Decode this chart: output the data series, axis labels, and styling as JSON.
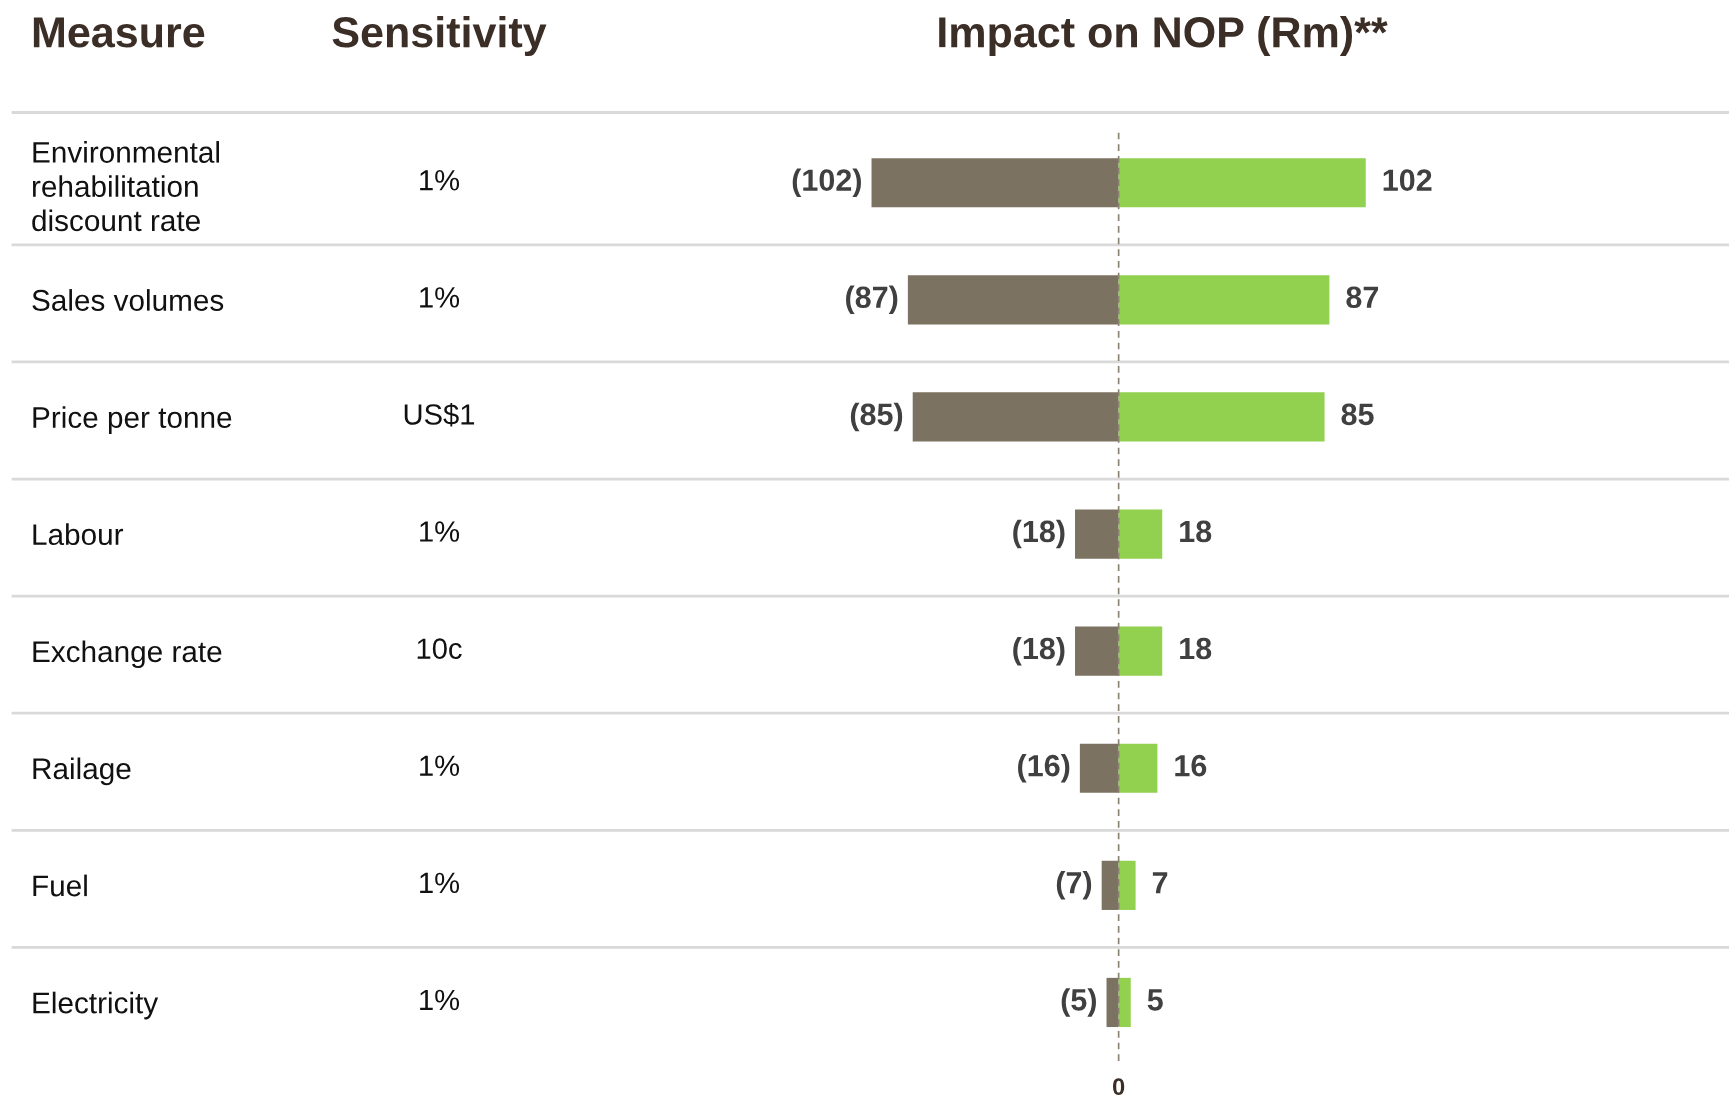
{
  "chart_data": {
    "type": "bar",
    "orientation": "horizontal",
    "stacked": true,
    "title": "Impact on NOP (Rm)**",
    "ylabel": "Measure",
    "y2label": "Sensitivity",
    "categories": [
      "Environmental\nrehabilitation\ndiscount rate",
      "Sales volumes",
      "Price per tonne",
      "Labour",
      "Exchange rate",
      "Railage",
      "Fuel",
      "Electricity"
    ],
    "y2_categories": [
      "1%",
      "1%",
      "US$1",
      "1%",
      "10c",
      "1%",
      "1%",
      "1%"
    ],
    "series": [
      {
        "color": "#7b7261",
        "values": [
          -102,
          -87,
          -85,
          -18,
          -18,
          -16,
          -7,
          -5
        ],
        "value_labels": [
          "(102)",
          "(87)",
          "(85)",
          "(18)",
          "(18)",
          "(16)",
          "(7)",
          "(5)"
        ]
      },
      {
        "color": "#92d050",
        "values": [
          102,
          87,
          85,
          18,
          18,
          16,
          7,
          5
        ],
        "value_labels": [
          "102",
          "87",
          "85",
          "18",
          "18",
          "16",
          "7",
          "5"
        ]
      }
    ],
    "ref_lines": [
      {
        "axis": "x",
        "value": 0,
        "label": "0",
        "color": "#8c8274",
        "line_style": "dashed"
      }
    ]
  }
}
